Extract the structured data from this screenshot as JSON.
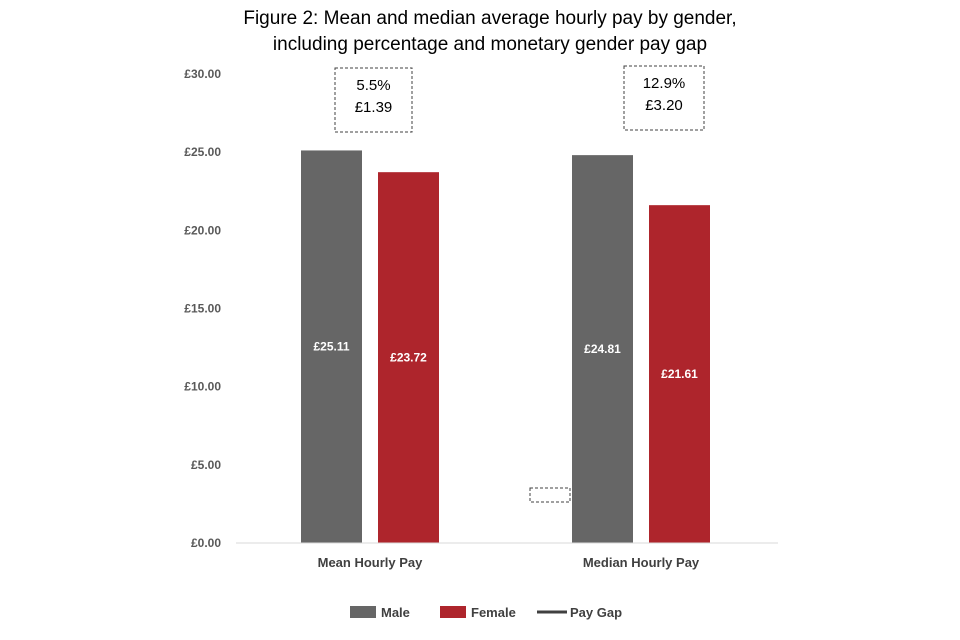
{
  "chart_data": {
    "type": "bar",
    "title_lines": [
      "Figure 2: Mean and median average hourly pay by gender,",
      "including percentage and monetary gender pay gap"
    ],
    "categories": [
      "Mean Hourly Pay",
      "Median Hourly Pay"
    ],
    "series": [
      {
        "name": "Male",
        "color": "#666666",
        "values": [
          25.11,
          24.81
        ],
        "labels": [
          "£25.11",
          "£24.81"
        ]
      },
      {
        "name": "Female",
        "color": "#ae252c",
        "values": [
          23.72,
          21.61
        ],
        "labels": [
          "£23.72",
          "£21.61"
        ]
      }
    ],
    "pay_gap": {
      "name": "Pay Gap",
      "annotations": [
        {
          "percent": "5.5%",
          "amount": "£1.39"
        },
        {
          "percent": "12.9%",
          "amount": "£3.20"
        }
      ]
    },
    "ylim": [
      0,
      30
    ],
    "yticks": [
      0,
      5,
      10,
      15,
      20,
      25,
      30
    ],
    "ytick_labels": [
      "£0.00",
      "£5.00",
      "£10.00",
      "£15.00",
      "£20.00",
      "£25.00",
      "£30.00"
    ],
    "legend": {
      "position": "bottom",
      "items": [
        {
          "label": "Male",
          "swatch": "box",
          "color": "#666666"
        },
        {
          "label": "Female",
          "swatch": "box",
          "color": "#ae252c"
        },
        {
          "label": "Pay Gap",
          "swatch": "line",
          "color": "#404040"
        }
      ]
    },
    "grid": false
  }
}
